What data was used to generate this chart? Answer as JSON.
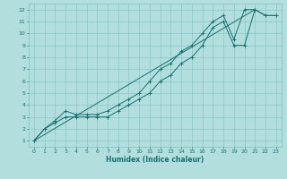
{
  "xlabel": "Humidex (Indice chaleur)",
  "xlim": [
    -0.5,
    23.5
  ],
  "ylim": [
    0.5,
    12.5
  ],
  "xticks": [
    0,
    1,
    2,
    3,
    4,
    5,
    6,
    7,
    8,
    9,
    10,
    11,
    12,
    13,
    14,
    15,
    16,
    17,
    18,
    19,
    20,
    21,
    22,
    23
  ],
  "yticks": [
    1,
    2,
    3,
    4,
    5,
    6,
    7,
    8,
    9,
    10,
    11,
    12
  ],
  "bg_color": "#b2dede",
  "grid_color": "#80c0c0",
  "line_color": "#1a7070",
  "line1_x": [
    0,
    1,
    2,
    3,
    4,
    5,
    6,
    7,
    8,
    9,
    10,
    11,
    12,
    13,
    14,
    15,
    16,
    17,
    18,
    19,
    20,
    21,
    22,
    23
  ],
  "line1_y": [
    1,
    2,
    2.5,
    3,
    3,
    3,
    3,
    3,
    3.5,
    4,
    4.5,
    5,
    6,
    6.5,
    7.5,
    8,
    9,
    10.5,
    11,
    9,
    9,
    12,
    11.5,
    11.5
  ],
  "line2_x": [
    0,
    1,
    2,
    3,
    4,
    5,
    6,
    7,
    8,
    9,
    10,
    11,
    12,
    13,
    14,
    15,
    16,
    17,
    18,
    19,
    20,
    21,
    22,
    23
  ],
  "line2_y": [
    1,
    2,
    2.7,
    3.5,
    3.2,
    3.2,
    3.2,
    3.5,
    4,
    4.5,
    5,
    6,
    7,
    7.5,
    8.5,
    9,
    10,
    11,
    11.5,
    9.5,
    12,
    12,
    11.5,
    11.5
  ],
  "line3_x": [
    0,
    21
  ],
  "line3_y": [
    1,
    12
  ]
}
